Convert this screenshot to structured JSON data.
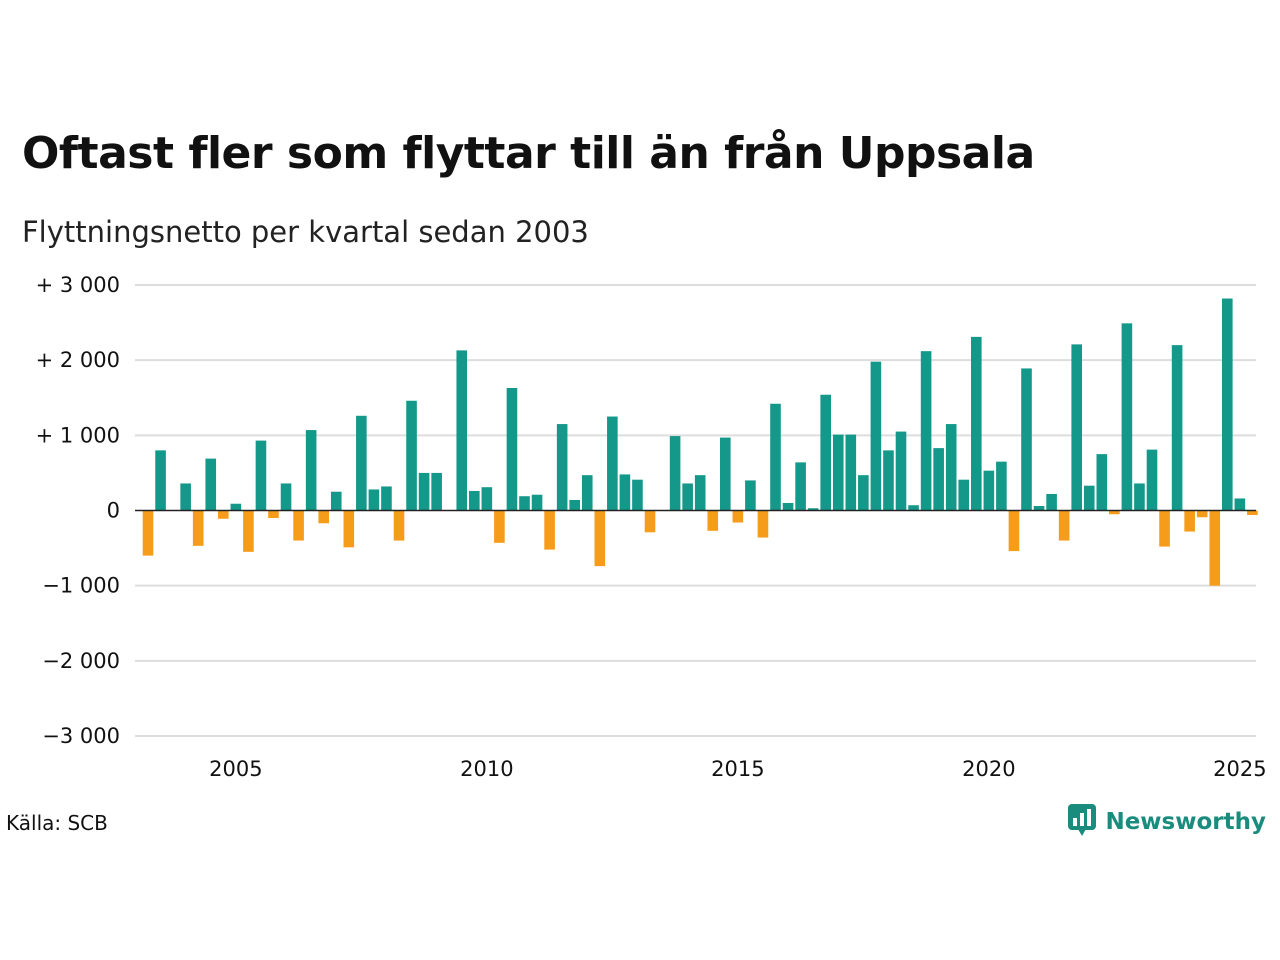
{
  "title": "Oftast fler som flyttar till än från Uppsala",
  "subtitle": "Flyttningsnetto per kvartal sedan 2003",
  "source": "Källa: SCB",
  "brand": {
    "name": "Newsworthy",
    "icon": "newsworthy-logo-icon",
    "color": "#1a8c7d"
  },
  "colors": {
    "positive": "#14988a",
    "negative": "#f59c1a",
    "grid": "#dddddd",
    "zero": "#222222"
  },
  "chart_data": {
    "type": "bar",
    "title": "Oftast fler som flyttar till än från Uppsala",
    "subtitle": "Flyttningsnetto per kvartal sedan 2003",
    "xlabel": "",
    "ylabel": "",
    "ylim": [
      -3000,
      3000
    ],
    "yticks": [
      3000,
      2000,
      1000,
      0,
      -1000,
      -2000,
      -3000
    ],
    "ytick_labels": [
      "+ 3 000",
      "+ 2 000",
      "+ 1 000",
      "0",
      "−1 000",
      "−2 000",
      "−3 000"
    ],
    "xticks": [
      2005,
      2010,
      2015,
      2020,
      2025
    ],
    "xtick_labels": [
      "2005",
      "2010",
      "2015",
      "2020",
      "2025"
    ],
    "grid": true,
    "legend": "none",
    "categories": [
      "2003K2",
      "2003K3",
      "2003K4",
      "2004K1",
      "2004K2",
      "2004K3",
      "2004K4",
      "2005K1",
      "2005K2",
      "2005K3",
      "2005K4",
      "2006K1",
      "2006K2",
      "2006K3",
      "2006K4",
      "2007K1",
      "2007K2",
      "2007K3",
      "2007K4",
      "2008K1",
      "2008K2",
      "2008K3",
      "2008K4",
      "2009K1",
      "2009K2",
      "2009K3",
      "2009K4",
      "2010K1",
      "2010K2",
      "2010K3",
      "2010K4",
      "2011K1",
      "2011K2",
      "2011K3",
      "2011K4",
      "2012K1",
      "2012K2",
      "2012K3",
      "2012K4",
      "2013K1",
      "2013K2",
      "2013K3",
      "2013K4",
      "2014K1",
      "2014K2",
      "2014K3",
      "2014K4",
      "2015K1",
      "2015K2",
      "2015K3",
      "2015K4",
      "2016K1",
      "2016K2",
      "2016K3",
      "2016K4",
      "2017K1",
      "2017K2",
      "2017K3",
      "2017K4",
      "2018K1",
      "2018K2",
      "2018K3",
      "2018K4",
      "2019K1",
      "2019K2",
      "2019K3",
      "2019K4",
      "2020K1",
      "2020K2",
      "2020K3",
      "2020K4",
      "2021K1",
      "2021K2",
      "2021K3",
      "2021K4",
      "2022K1",
      "2022K2",
      "2022K3",
      "2022K4",
      "2023K1",
      "2023K2",
      "2023K3",
      "2023K4",
      "2024K1",
      "2024K2",
      "2024K3",
      "2024K4",
      "2025K1",
      "2025K2"
    ],
    "values": [
      -600,
      800,
      0,
      360,
      -470,
      690,
      -110,
      90,
      -550,
      930,
      -100,
      360,
      -400,
      1070,
      -170,
      250,
      -490,
      1260,
      280,
      320,
      -400,
      1460,
      500,
      500,
      0,
      2130,
      260,
      310,
      -430,
      1630,
      190,
      210,
      -520,
      1150,
      140,
      470,
      -740,
      1250,
      480,
      410,
      -290,
      0,
      990,
      360,
      470,
      -270,
      970,
      -160,
      400,
      -360,
      1420,
      100,
      640,
      30,
      1540,
      1010,
      1010,
      470,
      1980,
      800,
      1050,
      70,
      2120,
      830,
      1150,
      410,
      2310,
      530,
      650,
      -540,
      1890,
      60,
      220,
      -400,
      2210,
      330,
      750,
      -50,
      2490,
      360,
      810,
      -480,
      2200,
      -280,
      -90,
      -1000,
      2820,
      160,
      -60
    ]
  }
}
